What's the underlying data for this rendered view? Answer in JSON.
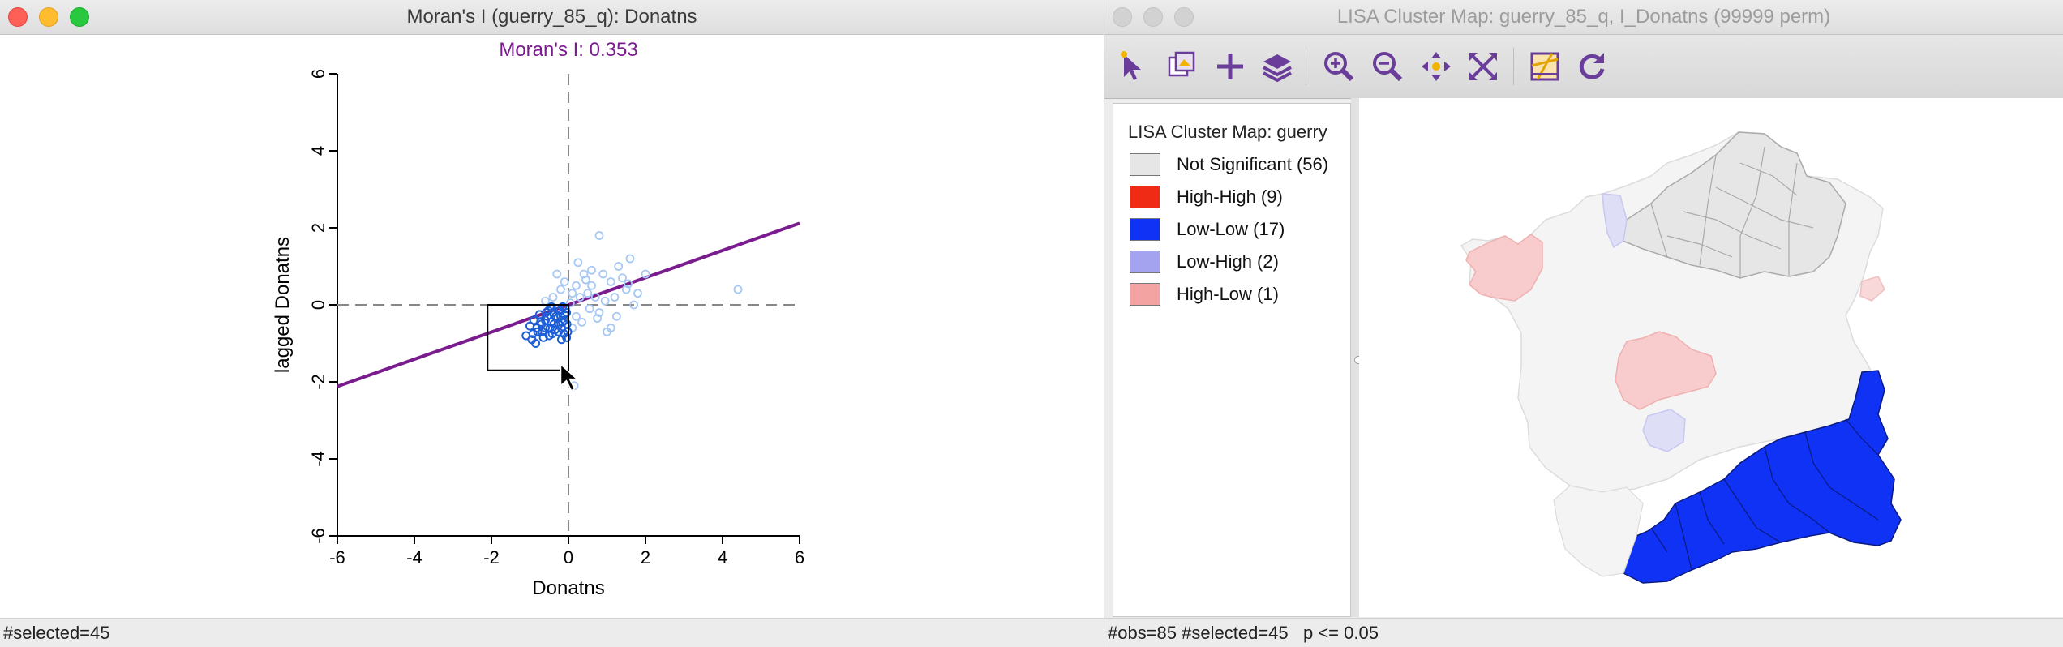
{
  "moran_window": {
    "title": "Moran's I (guerry_85_q): Donatns",
    "status": "#selected=45",
    "chart_data": {
      "type": "scatter",
      "title": "Moran's I: 0.353",
      "xlabel": "Donatns",
      "ylabel": "lagged Donatns",
      "xlim": [
        -6,
        6
      ],
      "ylim": [
        -6,
        6
      ],
      "xticks": [
        "-6",
        "-4",
        "-2",
        "0",
        "2",
        "4",
        "6"
      ],
      "yticks": [
        "-6",
        "-4",
        "-2",
        "0",
        "2",
        "4",
        "6"
      ],
      "slope": 0.353,
      "selected_points": [
        [
          -1.1,
          -0.8
        ],
        [
          -0.95,
          -0.9
        ],
        [
          -0.85,
          -1.0
        ],
        [
          -0.8,
          -0.7
        ],
        [
          -0.7,
          -0.5
        ],
        [
          -0.6,
          -0.6
        ],
        [
          -0.55,
          -0.3
        ],
        [
          -0.5,
          -0.8
        ],
        [
          -0.45,
          -0.45
        ],
        [
          -0.4,
          -0.2
        ],
        [
          -0.35,
          -0.65
        ],
        [
          -0.3,
          -0.1
        ],
        [
          -0.25,
          -0.5
        ],
        [
          -0.2,
          -0.3
        ],
        [
          -0.15,
          -0.05
        ],
        [
          -0.1,
          -0.4
        ],
        [
          -0.05,
          -0.2
        ],
        [
          -0.02,
          -0.7
        ],
        [
          -0.9,
          -0.4
        ],
        [
          -0.75,
          -0.25
        ],
        [
          -0.65,
          -0.85
        ],
        [
          -0.52,
          -0.15
        ],
        [
          -0.42,
          -0.75
        ],
        [
          -0.28,
          -0.35
        ],
        [
          -0.18,
          -0.6
        ],
        [
          -0.08,
          -0.1
        ],
        [
          -1.0,
          -0.55
        ],
        [
          -0.82,
          -0.6
        ],
        [
          -0.6,
          -0.4
        ],
        [
          -0.38,
          -0.5
        ],
        [
          -0.22,
          -0.15
        ],
        [
          -0.12,
          -0.75
        ],
        [
          -0.48,
          -0.6
        ],
        [
          -0.68,
          -0.7
        ],
        [
          -0.33,
          -0.3
        ],
        [
          -0.15,
          -0.45
        ],
        [
          -0.05,
          -0.85
        ],
        [
          -0.92,
          -0.75
        ],
        [
          -0.58,
          -0.2
        ],
        [
          -0.26,
          -0.7
        ],
        [
          -0.44,
          -0.05
        ],
        [
          -0.1,
          -0.25
        ],
        [
          -0.72,
          -0.45
        ],
        [
          -0.18,
          -0.9
        ],
        [
          -0.04,
          -0.5
        ]
      ],
      "other_points": [
        [
          0.8,
          1.8
        ],
        [
          0.4,
          0.8
        ],
        [
          0.6,
          0.5
        ],
        [
          0.9,
          0.8
        ],
        [
          1.1,
          0.6
        ],
        [
          1.3,
          1.0
        ],
        [
          1.6,
          1.2
        ],
        [
          1.5,
          0.4
        ],
        [
          2.0,
          0.8
        ],
        [
          4.4,
          0.4
        ],
        [
          1.0,
          -0.7
        ],
        [
          1.1,
          -0.6
        ],
        [
          0.8,
          -0.2
        ],
        [
          0.3,
          0.2
        ],
        [
          0.2,
          0.5
        ],
        [
          0.5,
          0.3
        ],
        [
          1.7,
          0.0
        ],
        [
          1.8,
          0.3
        ],
        [
          0.1,
          -0.6
        ],
        [
          0.2,
          -0.3
        ],
        [
          0.7,
          0.2
        ],
        [
          1.2,
          0.2
        ],
        [
          0.35,
          -0.45
        ],
        [
          0.6,
          0.9
        ],
        [
          1.4,
          0.7
        ],
        [
          0.1,
          0.3
        ],
        [
          -0.2,
          0.4
        ],
        [
          -0.4,
          0.2
        ],
        [
          -0.1,
          0.6
        ],
        [
          -0.6,
          0.1
        ],
        [
          0.25,
          1.1
        ],
        [
          0.55,
          -0.1
        ],
        [
          0.95,
          0.1
        ],
        [
          1.25,
          -0.3
        ],
        [
          0.15,
          -2.1
        ],
        [
          0.45,
          0.65
        ],
        [
          -0.3,
          0.8
        ],
        [
          0.05,
          0.05
        ],
        [
          0.75,
          -0.35
        ],
        [
          1.55,
          0.55
        ]
      ]
    }
  },
  "lisa_window": {
    "title": "LISA Cluster Map: guerry_85_q, I_Donatns (99999 perm)",
    "status": "#obs=85 #selected=45   p <= 0.05",
    "toolbar": [
      "select-icon",
      "copy-image-icon",
      "add-layer-icon",
      "layers-icon",
      "zoom-in-icon",
      "zoom-out-icon",
      "pan-icon",
      "full-extent-icon",
      "basemap-icon",
      "refresh-icon"
    ],
    "legend": {
      "title": "LISA Cluster Map: guerry",
      "items": [
        {
          "label": "Not Significant (56)",
          "color": "#e6e6e6"
        },
        {
          "label": "High-High (9)",
          "color": "#f02b15"
        },
        {
          "label": "Low-Low (17)",
          "color": "#0f32f5"
        },
        {
          "label": "Low-High (2)",
          "color": "#a3a3f0"
        },
        {
          "label": "High-Low (1)",
          "color": "#f4a3a3"
        }
      ]
    },
    "colors": {
      "selected_lowlow": "#0f32f5",
      "faded_ns": "#f4f4f4",
      "ns": "#e6e6e6",
      "highlow_faded": "#f8cccc",
      "lowhigh_faded": "#dedef7"
    }
  }
}
